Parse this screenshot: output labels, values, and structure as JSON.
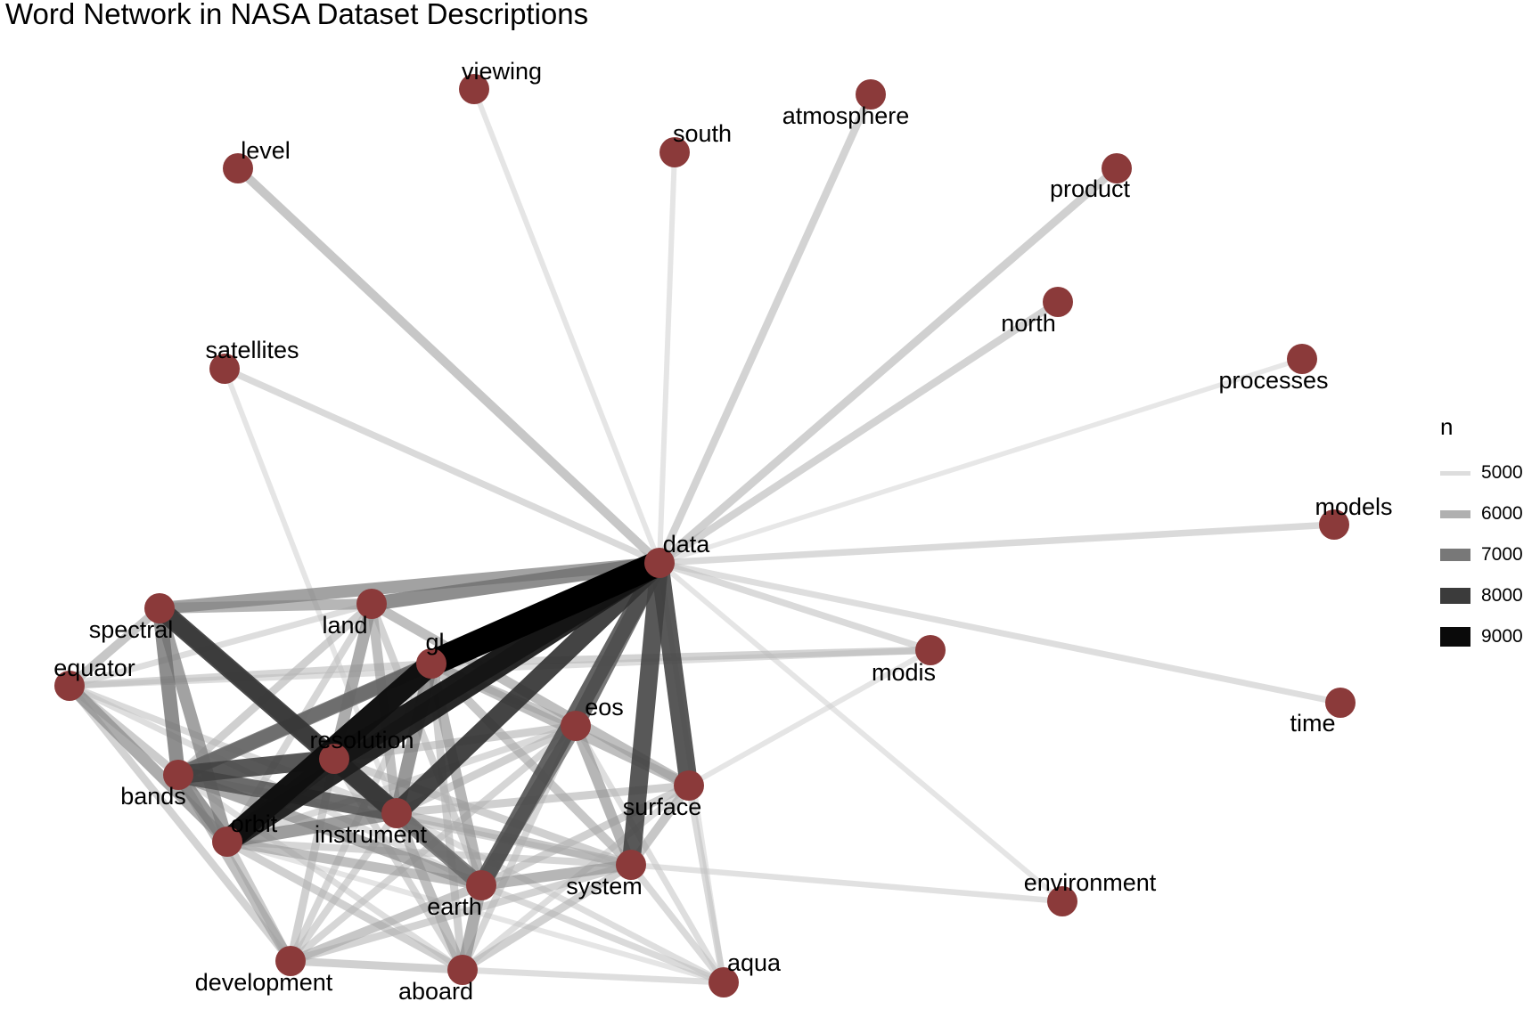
{
  "title": "Word Network in NASA Dataset Descriptions",
  "node_color": "#8b3a3a",
  "edge_color": "#000000",
  "nodes": [
    {
      "id": "data",
      "label": "data"
    },
    {
      "id": "viewing",
      "label": "viewing"
    },
    {
      "id": "atmosphere",
      "label": "atmosphere"
    },
    {
      "id": "south",
      "label": "south"
    },
    {
      "id": "level",
      "label": "level"
    },
    {
      "id": "product",
      "label": "product"
    },
    {
      "id": "north",
      "label": "north"
    },
    {
      "id": "satellites",
      "label": "satellites"
    },
    {
      "id": "processes",
      "label": "processes"
    },
    {
      "id": "models",
      "label": "models"
    },
    {
      "id": "spectral",
      "label": "spectral"
    },
    {
      "id": "land",
      "label": "land"
    },
    {
      "id": "gl",
      "label": "gl"
    },
    {
      "id": "equator",
      "label": "equator"
    },
    {
      "id": "modis",
      "label": "modis"
    },
    {
      "id": "time",
      "label": "time"
    },
    {
      "id": "eos",
      "label": "eos"
    },
    {
      "id": "resolution",
      "label": "resolution"
    },
    {
      "id": "bands",
      "label": "bands"
    },
    {
      "id": "surface",
      "label": "surface"
    },
    {
      "id": "instrument",
      "label": "instrument"
    },
    {
      "id": "orbit",
      "label": "orbit"
    },
    {
      "id": "system",
      "label": "system"
    },
    {
      "id": "earth",
      "label": "earth"
    },
    {
      "id": "environment",
      "label": "environment"
    },
    {
      "id": "development",
      "label": "development"
    },
    {
      "id": "aboard",
      "label": "aboard"
    },
    {
      "id": "aqua",
      "label": "aqua"
    }
  ],
  "edges": [
    {
      "from": "data",
      "to": "gl",
      "n": 9600
    },
    {
      "from": "data",
      "to": "resolution",
      "n": 8800
    },
    {
      "from": "data",
      "to": "orbit",
      "n": 8600
    },
    {
      "from": "data",
      "to": "instrument",
      "n": 8200
    },
    {
      "from": "data",
      "to": "system",
      "n": 7900
    },
    {
      "from": "data",
      "to": "surface",
      "n": 7900
    },
    {
      "from": "data",
      "to": "earth",
      "n": 7700
    },
    {
      "from": "data",
      "to": "eos",
      "n": 7400
    },
    {
      "from": "data",
      "to": "land",
      "n": 7000
    },
    {
      "from": "data",
      "to": "spectral",
      "n": 6600
    },
    {
      "from": "data",
      "to": "bands",
      "n": 6800
    },
    {
      "from": "data",
      "to": "level",
      "n": 5800
    },
    {
      "from": "data",
      "to": "product",
      "n": 5600
    },
    {
      "from": "data",
      "to": "north",
      "n": 5500
    },
    {
      "from": "data",
      "to": "atmosphere",
      "n": 5500
    },
    {
      "from": "data",
      "to": "satellites",
      "n": 5300
    },
    {
      "from": "data",
      "to": "models",
      "n": 5300
    },
    {
      "from": "data",
      "to": "modis",
      "n": 5300
    },
    {
      "from": "data",
      "to": "time",
      "n": 5200
    },
    {
      "from": "data",
      "to": "viewing",
      "n": 5000
    },
    {
      "from": "data",
      "to": "south",
      "n": 5000
    },
    {
      "from": "data",
      "to": "processes",
      "n": 4900
    },
    {
      "from": "data",
      "to": "environment",
      "n": 5000
    },
    {
      "from": "data",
      "to": "aqua",
      "n": 5000
    },
    {
      "from": "spectral",
      "to": "instrument",
      "n": 8100
    },
    {
      "from": "spectral",
      "to": "resolution",
      "n": 7400
    },
    {
      "from": "spectral",
      "to": "bands",
      "n": 7000
    },
    {
      "from": "spectral",
      "to": "orbit",
      "n": 6600
    },
    {
      "from": "spectral",
      "to": "land",
      "n": 6200
    },
    {
      "from": "spectral",
      "to": "equator",
      "n": 5800
    },
    {
      "from": "equator",
      "to": "modis",
      "n": 5200
    },
    {
      "from": "equator",
      "to": "gl",
      "n": 5400
    },
    {
      "from": "equator",
      "to": "land",
      "n": 5200
    },
    {
      "from": "equator",
      "to": "orbit",
      "n": 6400
    },
    {
      "from": "equator",
      "to": "bands",
      "n": 5700
    },
    {
      "from": "equator",
      "to": "development",
      "n": 5500
    },
    {
      "from": "equator",
      "to": "instrument",
      "n": 5300
    },
    {
      "from": "equator",
      "to": "earth",
      "n": 5200
    },
    {
      "from": "satellites",
      "to": "instrument",
      "n": 5000
    },
    {
      "from": "gl",
      "to": "orbit",
      "n": 8900
    },
    {
      "from": "gl",
      "to": "bands",
      "n": 7200
    },
    {
      "from": "gl",
      "to": "eos",
      "n": 5800
    },
    {
      "from": "gl",
      "to": "surface",
      "n": 6000
    },
    {
      "from": "gl",
      "to": "earth",
      "n": 6200
    },
    {
      "from": "gl",
      "to": "instrument",
      "n": 6800
    },
    {
      "from": "gl",
      "to": "system",
      "n": 5800
    },
    {
      "from": "gl",
      "to": "aboard",
      "n": 5600
    },
    {
      "from": "gl",
      "to": "development",
      "n": 5400
    },
    {
      "from": "gl",
      "to": "modis",
      "n": 5500
    },
    {
      "from": "land",
      "to": "resolution",
      "n": 6400
    },
    {
      "from": "land",
      "to": "bands",
      "n": 5600
    },
    {
      "from": "land",
      "to": "instrument",
      "n": 6000
    },
    {
      "from": "land",
      "to": "earth",
      "n": 5500
    },
    {
      "from": "land",
      "to": "surface",
      "n": 6000
    },
    {
      "from": "land",
      "to": "orbit",
      "n": 5400
    },
    {
      "from": "resolution",
      "to": "bands",
      "n": 7900
    },
    {
      "from": "resolution",
      "to": "instrument",
      "n": 7700
    },
    {
      "from": "resolution",
      "to": "orbit",
      "n": 7600
    },
    {
      "from": "resolution",
      "to": "earth",
      "n": 6400
    },
    {
      "from": "resolution",
      "to": "eos",
      "n": 5600
    },
    {
      "from": "resolution",
      "to": "system",
      "n": 5600
    },
    {
      "from": "resolution",
      "to": "development",
      "n": 5600
    },
    {
      "from": "resolution",
      "to": "aboard",
      "n": 5400
    },
    {
      "from": "bands",
      "to": "instrument",
      "n": 7600
    },
    {
      "from": "bands",
      "to": "orbit",
      "n": 6800
    },
    {
      "from": "bands",
      "to": "earth",
      "n": 6400
    },
    {
      "from": "bands",
      "to": "development",
      "n": 6000
    },
    {
      "from": "bands",
      "to": "system",
      "n": 5400
    },
    {
      "from": "bands",
      "to": "aboard",
      "n": 5200
    },
    {
      "from": "instrument",
      "to": "earth",
      "n": 7200
    },
    {
      "from": "instrument",
      "to": "orbit",
      "n": 6700
    },
    {
      "from": "instrument",
      "to": "eos",
      "n": 5600
    },
    {
      "from": "instrument",
      "to": "surface",
      "n": 5600
    },
    {
      "from": "instrument",
      "to": "system",
      "n": 5800
    },
    {
      "from": "instrument",
      "to": "aboard",
      "n": 6000
    },
    {
      "from": "instrument",
      "to": "development",
      "n": 5400
    },
    {
      "from": "instrument",
      "to": "aqua",
      "n": 5200
    },
    {
      "from": "orbit",
      "to": "earth",
      "n": 6000
    },
    {
      "from": "orbit",
      "to": "development",
      "n": 5700
    },
    {
      "from": "orbit",
      "to": "aboard",
      "n": 5600
    },
    {
      "from": "orbit",
      "to": "system",
      "n": 5400
    },
    {
      "from": "orbit",
      "to": "eos",
      "n": 5300
    },
    {
      "from": "orbit",
      "to": "aqua",
      "n": 5000
    },
    {
      "from": "eos",
      "to": "earth",
      "n": 7000
    },
    {
      "from": "eos",
      "to": "system",
      "n": 6200
    },
    {
      "from": "eos",
      "to": "development",
      "n": 5400
    },
    {
      "from": "eos",
      "to": "aboard",
      "n": 5400
    },
    {
      "from": "eos",
      "to": "aqua",
      "n": 5200
    },
    {
      "from": "surface",
      "to": "system",
      "n": 5800
    },
    {
      "from": "surface",
      "to": "earth",
      "n": 5600
    },
    {
      "from": "surface",
      "to": "aqua",
      "n": 5300
    },
    {
      "from": "surface",
      "to": "modis",
      "n": 5000
    },
    {
      "from": "surface",
      "to": "aboard",
      "n": 5200
    },
    {
      "from": "earth",
      "to": "system",
      "n": 6200
    },
    {
      "from": "earth",
      "to": "aboard",
      "n": 6400
    },
    {
      "from": "earth",
      "to": "development",
      "n": 5800
    },
    {
      "from": "earth",
      "to": "aqua",
      "n": 5300
    },
    {
      "from": "system",
      "to": "environment",
      "n": 5100
    },
    {
      "from": "system",
      "to": "aboard",
      "n": 5600
    },
    {
      "from": "system",
      "to": "aqua",
      "n": 5300
    },
    {
      "from": "system",
      "to": "development",
      "n": 5500
    },
    {
      "from": "development",
      "to": "aboard",
      "n": 5600
    },
    {
      "from": "aboard",
      "to": "aqua",
      "n": 5200
    }
  ],
  "legend": {
    "title": "n",
    "items": [
      {
        "value": 5000,
        "label": "5000"
      },
      {
        "value": 6000,
        "label": "6000"
      },
      {
        "value": 7000,
        "label": "7000"
      },
      {
        "value": 8000,
        "label": "8000"
      },
      {
        "value": 9000,
        "label": "9000"
      }
    ]
  }
}
